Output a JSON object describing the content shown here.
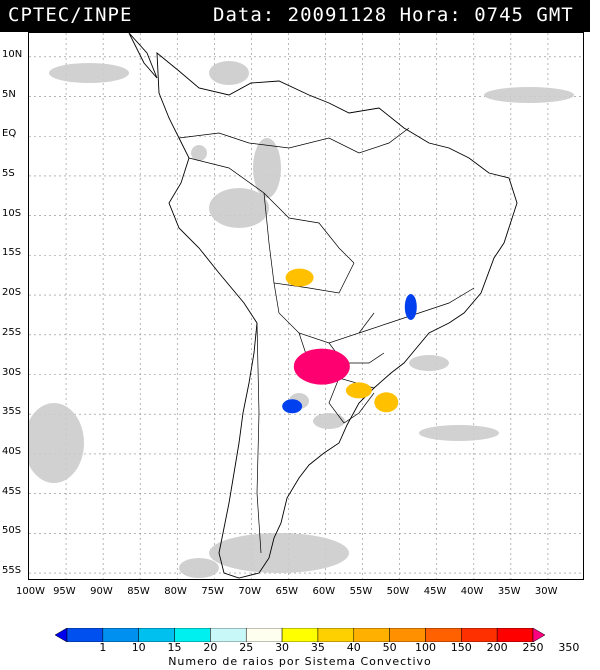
{
  "header": {
    "left": "CPTEC/INPE",
    "right": "Data: 20091128 Hora: 0745 GMT"
  },
  "map": {
    "lat_labels": [
      "10N",
      "5N",
      "EQ",
      "5S",
      "10S",
      "15S",
      "20S",
      "25S",
      "30S",
      "35S",
      "40S",
      "45S",
      "50S",
      "55S"
    ],
    "lon_labels": [
      "100W",
      "95W",
      "90W",
      "85W",
      "80W",
      "75W",
      "70W",
      "65W",
      "60W",
      "55W",
      "50W",
      "45W",
      "40W",
      "35W",
      "30W"
    ]
  },
  "colorbar": {
    "labels": [
      "1",
      "10",
      "15",
      "20",
      "25",
      "30",
      "35",
      "40",
      "50",
      "100",
      "150",
      "200",
      "250",
      "350"
    ],
    "colors": [
      "#0000ee",
      "#0050f0",
      "#0090f0",
      "#00c0f0",
      "#00f0f0",
      "#c8f8f8",
      "#fffff0",
      "#ffff00",
      "#ffd000",
      "#ffb000",
      "#ff9000",
      "#ff6000",
      "#ff3000",
      "#ff0000",
      "#ff0080"
    ],
    "caption": "Numero de raios por Sistema Convectivo"
  },
  "systems": [
    {
      "name": "system-bolivia",
      "lon": -63.5,
      "lat": -17.8,
      "flashes_color": "#ffc000"
    },
    {
      "name": "system-brazil-southeast",
      "lon": -48.5,
      "lat": -21.5,
      "flashes_color": "#0040ee"
    },
    {
      "name": "system-argentina-northeast",
      "lon": -60.5,
      "lat": -29.0,
      "flashes_color": "#ff0070"
    },
    {
      "name": "system-uruguay",
      "lon": -55.5,
      "lat": -32.0,
      "flashes_color": "#ffc000"
    },
    {
      "name": "system-atlantic",
      "lon": -51.8,
      "lat": -33.5,
      "flashes_color": "#ffc000"
    },
    {
      "name": "system-argentina-central",
      "lon": -64.5,
      "lat": -34.0,
      "flashes_color": "#0040ee"
    }
  ]
}
